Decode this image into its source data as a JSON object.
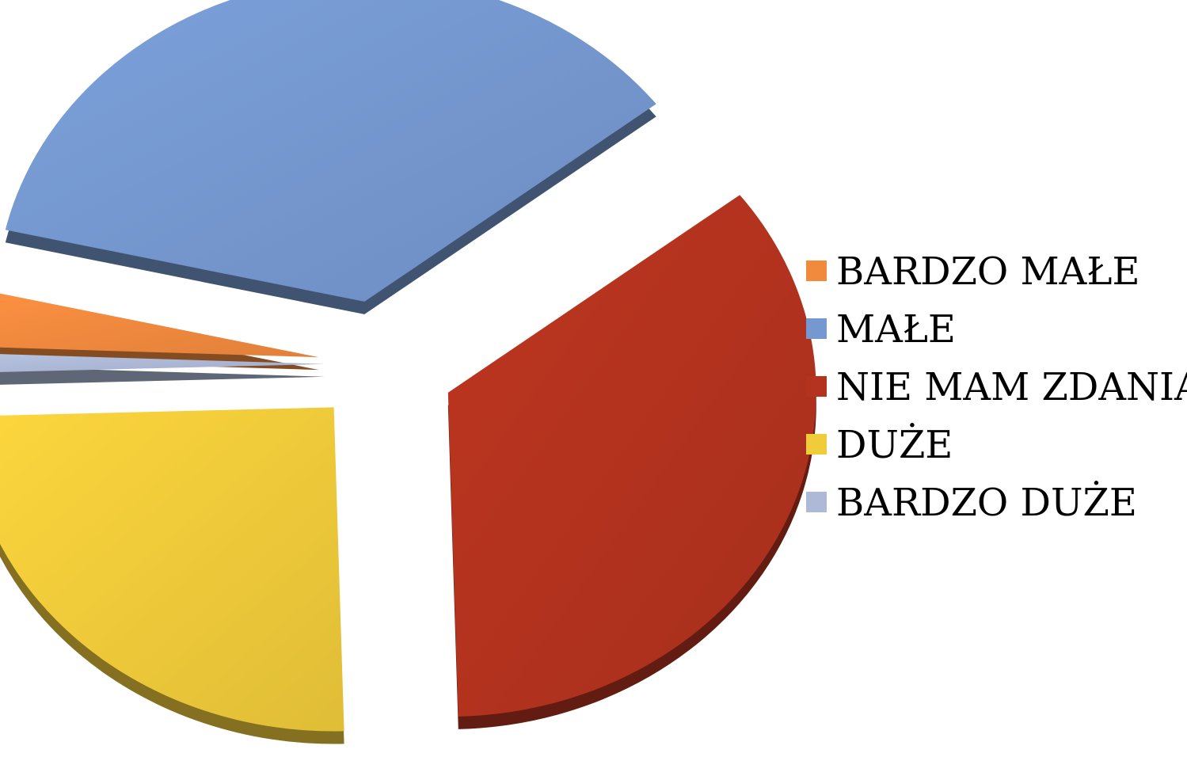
{
  "chart_data": {
    "type": "pie",
    "title": "",
    "exploded": true,
    "three_d": true,
    "legend_position": "right",
    "slices": [
      {
        "label": "BARDZO MAŁE",
        "value": 3,
        "color": "#F28A3E"
      },
      {
        "label": "MAŁE",
        "value": 36,
        "color": "#7598D0"
      },
      {
        "label": "NIE MAM ZDANIA",
        "value": 35,
        "color": "#B3331E"
      },
      {
        "label": "DUŻE",
        "value": 25,
        "color": "#F0CB3A"
      },
      {
        "label": "BARDZO DUŻE",
        "value": 1,
        "color": "#ADB9D6"
      }
    ]
  }
}
